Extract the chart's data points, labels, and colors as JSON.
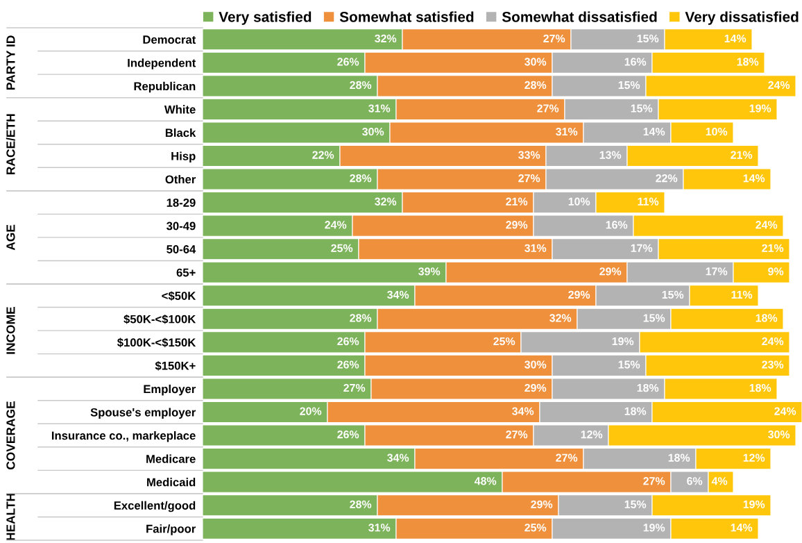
{
  "chart_data": [
    {
      "type": "bar",
      "orientation": "horizontal",
      "stacked": true,
      "ylabel": "PARTY ID",
      "categories": [
        "Democrat",
        "Independent",
        "Republican"
      ],
      "legend": "top right",
      "tick_labels": "y",
      "series": [
        {
          "name": "Very satisfied",
          "color": "#7db35a",
          "values": [
            32,
            26,
            28
          ],
          "value_labels": [
            "32%",
            "26%",
            "28%"
          ]
        },
        {
          "name": "Somewhat satisfied",
          "color": "#ef903c",
          "values": [
            27,
            30,
            28
          ],
          "value_labels": [
            "27%",
            "30%",
            "28%"
          ]
        },
        {
          "name": "Somewhat dissatisfied",
          "color": "#b3b3b3",
          "values": [
            15,
            16,
            15
          ],
          "value_labels": [
            "15%",
            "16%",
            "15%"
          ]
        },
        {
          "name": "Very dissatisfied",
          "color": "#ffc60b",
          "values": [
            14,
            18,
            24
          ],
          "value_labels": [
            "14%",
            "18%",
            "24%"
          ]
        }
      ]
    },
    {
      "type": "bar",
      "orientation": "horizontal",
      "stacked": true,
      "ylabel": "RACE/ETH",
      "categories": [
        "White",
        "Black",
        "Hisp",
        "Other"
      ],
      "tick_labels": "y",
      "series": [
        {
          "color": "#7db35a",
          "values": [
            31,
            30,
            22,
            28
          ],
          "value_labels": [
            "31%",
            "30%",
            "22%",
            "28%"
          ]
        },
        {
          "color": "#ef903c",
          "values": [
            27,
            31,
            33,
            27
          ],
          "value_labels": [
            "27%",
            "31%",
            "33%",
            "27%"
          ]
        },
        {
          "color": "#b3b3b3",
          "values": [
            15,
            14,
            13,
            22
          ],
          "value_labels": [
            "15%",
            "14%",
            "13%",
            "22%"
          ]
        },
        {
          "color": "#ffc60b",
          "values": [
            19,
            10,
            21,
            14
          ],
          "value_labels": [
            "19%",
            "10%",
            "21%",
            "14%"
          ]
        }
      ]
    },
    {
      "type": "bar",
      "orientation": "horizontal",
      "stacked": true,
      "ylabel": "AGE",
      "categories": [
        "18-29",
        "30-49",
        "50-64",
        "65+"
      ],
      "tick_labels": "y",
      "series": [
        {
          "color": "#7db35a",
          "values": [
            32,
            24,
            25,
            39
          ],
          "value_labels": [
            "32%",
            "24%",
            "25%",
            "39%"
          ]
        },
        {
          "color": "#ef903c",
          "values": [
            21,
            29,
            31,
            29
          ],
          "value_labels": [
            "21%",
            "29%",
            "31%",
            "29%"
          ]
        },
        {
          "color": "#b3b3b3",
          "values": [
            10,
            16,
            17,
            17
          ],
          "value_labels": [
            "10%",
            "16%",
            "17%",
            "17%"
          ]
        },
        {
          "color": "#ffc60b",
          "values": [
            11,
            24,
            21,
            9
          ],
          "value_labels": [
            "11%",
            "24%",
            "21%",
            "9%"
          ]
        }
      ]
    },
    {
      "type": "bar",
      "orientation": "horizontal",
      "stacked": true,
      "ylabel": "INCOME",
      "categories": [
        "<$50K",
        "$50K-<$100K",
        "$100K-<$150K",
        "$150K+"
      ],
      "tick_labels": "y",
      "series": [
        {
          "color": "#7db35a",
          "values": [
            34,
            28,
            26,
            26
          ],
          "value_labels": [
            "34%",
            "28%",
            "26%",
            "26%"
          ]
        },
        {
          "color": "#ef903c",
          "values": [
            29,
            32,
            25,
            30
          ],
          "value_labels": [
            "29%",
            "32%",
            "25%",
            "30%"
          ]
        },
        {
          "color": "#b3b3b3",
          "values": [
            15,
            15,
            19,
            15
          ],
          "value_labels": [
            "15%",
            "15%",
            "19%",
            "15%"
          ]
        },
        {
          "color": "#ffc60b",
          "values": [
            11,
            18,
            24,
            23
          ],
          "value_labels": [
            "11%",
            "18%",
            "24%",
            "23%"
          ]
        }
      ]
    },
    {
      "type": "bar",
      "orientation": "horizontal",
      "stacked": true,
      "ylabel": "COVERAGE",
      "categories": [
        "Employer",
        "Spouse's employer",
        "Insurance co., markeplace",
        "Medicare",
        "Medicaid"
      ],
      "tick_labels": "y",
      "series": [
        {
          "color": "#7db35a",
          "values": [
            27,
            20,
            26,
            34,
            48
          ],
          "value_labels": [
            "27%",
            "20%",
            "26%",
            "34%",
            "48%"
          ]
        },
        {
          "color": "#ef903c",
          "values": [
            29,
            34,
            27,
            27,
            27
          ],
          "value_labels": [
            "29%",
            "34%",
            "27%",
            "27%",
            "27%"
          ]
        },
        {
          "color": "#b3b3b3",
          "values": [
            18,
            18,
            12,
            18,
            6
          ],
          "value_labels": [
            "18%",
            "18%",
            "12%",
            "18%",
            "6%"
          ]
        },
        {
          "color": "#ffc60b",
          "values": [
            18,
            24,
            30,
            12,
            4
          ],
          "value_labels": [
            "18%",
            "24%",
            "30%",
            "12%",
            "4%"
          ]
        }
      ]
    },
    {
      "type": "bar",
      "orientation": "horizontal",
      "stacked": true,
      "ylabel": "HEALTH",
      "categories": [
        "Excellent/good",
        "Fair/poor"
      ],
      "tick_labels": "y",
      "series": [
        {
          "color": "#7db35a",
          "values": [
            28,
            31
          ],
          "value_labels": [
            "28%",
            "31%"
          ]
        },
        {
          "color": "#ef903c",
          "values": [
            29,
            25
          ],
          "value_labels": [
            "29%",
            "25%"
          ]
        },
        {
          "color": "#b3b3b3",
          "values": [
            15,
            19
          ],
          "value_labels": [
            "15%",
            "19%"
          ]
        },
        {
          "color": "#ffc60b",
          "values": [
            19,
            14
          ],
          "value_labels": [
            "19%",
            "14%"
          ]
        }
      ]
    }
  ]
}
